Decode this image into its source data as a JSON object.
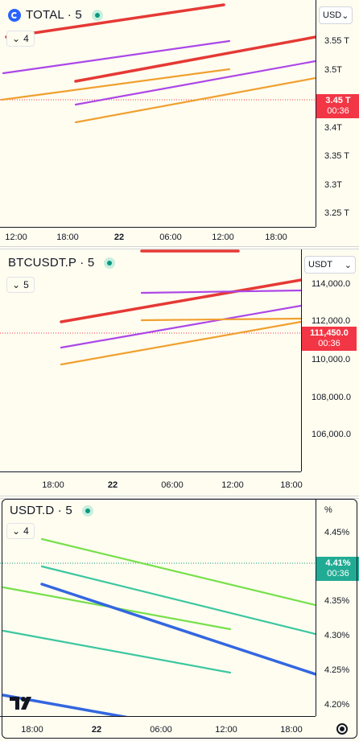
{
  "panels": [
    {
      "symbol": "TOTAL",
      "interval": "5",
      "collapse_count": "4",
      "currency": "USD",
      "price_label": "3.45 T",
      "countdown": "00:36",
      "price_tag_color": "#f23645",
      "y_ticks": [
        "3.55 T",
        "3.5T",
        "3.45 T",
        "3.4T",
        "3.35 T",
        "3.3T",
        "3.25 T"
      ],
      "x_ticks": [
        "12:00",
        "18:00",
        "22",
        "06:00",
        "12:00",
        "18:00"
      ]
    },
    {
      "symbol": "BTCUSDT.P",
      "interval": "5",
      "collapse_count": "5",
      "currency": "USDT",
      "price_label": "111,450.0",
      "countdown": "00:36",
      "price_tag_color": "#f23645",
      "y_ticks": [
        "114,000.0",
        "112,000.0",
        "110,000.0",
        "108,000.0",
        "106,000.0"
      ],
      "x_ticks": [
        "18:00",
        "22",
        "06:00",
        "12:00",
        "18:00"
      ]
    },
    {
      "symbol": "USDT.D",
      "interval": "5",
      "collapse_count": "4",
      "currency": "%",
      "price_label": "4.41%",
      "countdown": "00:36",
      "price_tag_color": "#22ab94",
      "y_ticks": [
        "4.45%",
        "4.40%",
        "4.35%",
        "4.30%",
        "4.25%",
        "4.20%"
      ],
      "x_ticks": [
        "18:00",
        "22",
        "06:00",
        "12:00",
        "18:00"
      ]
    }
  ],
  "colors": {
    "up": "#089981",
    "down": "#f23645",
    "trend_red": "#e53935",
    "trend_purple": "#ab47e8",
    "trend_orange": "#f0a030",
    "trend_green": "#76e04a",
    "trend_teal": "#3cc7a0",
    "trend_blue": "#3366e0"
  },
  "icons": {
    "symbol_icon": "coin-icon",
    "live": "live-dot-icon",
    "collapse": "chevron-down-icon",
    "brand": "tradingview-logo",
    "settings": "settings-icon"
  }
}
